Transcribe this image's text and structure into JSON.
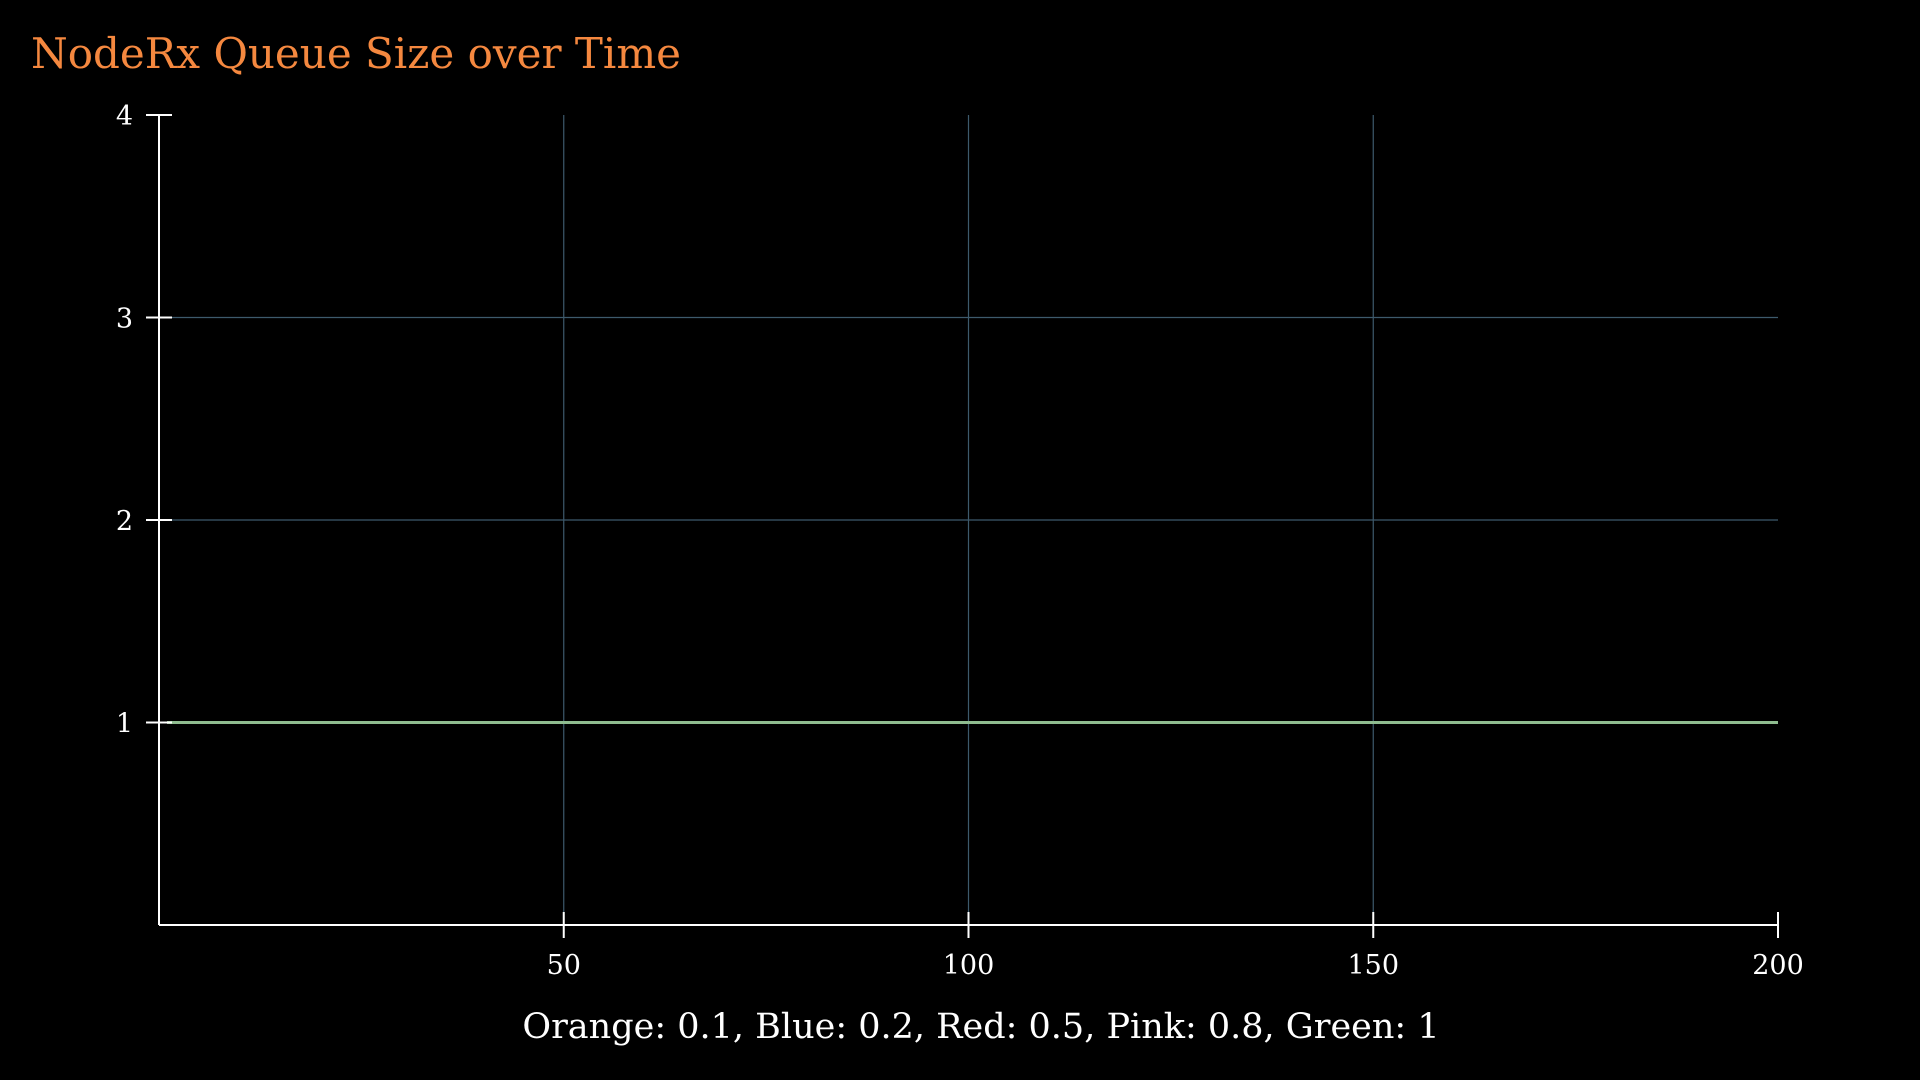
{
  "colors": {
    "background": "#000000",
    "title": "#f5883f",
    "axis": "#ffffff",
    "grid": "#3d5a6c",
    "text": "#ffffff"
  },
  "chart_data": {
    "type": "line",
    "title": "NodeRx Queue Size over Time",
    "xlabel": "Orange: 0.1, Blue: 0.2, Red: 0.5, Pink: 0.8, Green: 1",
    "ylabel": "",
    "xlim": [
      0,
      200
    ],
    "ylim": [
      0,
      4
    ],
    "x_ticks": [
      50,
      100,
      150,
      200
    ],
    "y_ticks": [
      1,
      2,
      3,
      4
    ],
    "x_tick_labels": [
      "50",
      "100",
      "150",
      "200"
    ],
    "y_tick_labels": [
      "1",
      "2",
      "3",
      "4"
    ],
    "grid": true,
    "series": [
      {
        "color": "#ff8c00",
        "x": [
          1,
          200
        ],
        "y": [
          1,
          1
        ]
      },
      {
        "color": "#3a7fc1",
        "x": [
          1,
          200
        ],
        "y": [
          1,
          1
        ]
      },
      {
        "color": "#d62728",
        "x": [
          1,
          200
        ],
        "y": [
          1,
          1
        ]
      },
      {
        "color": "#e377c2",
        "x": [
          1,
          200
        ],
        "y": [
          1,
          1
        ]
      },
      {
        "color": "#8fbc8f",
        "x": [
          1,
          200
        ],
        "y": [
          1,
          1
        ]
      }
    ]
  }
}
